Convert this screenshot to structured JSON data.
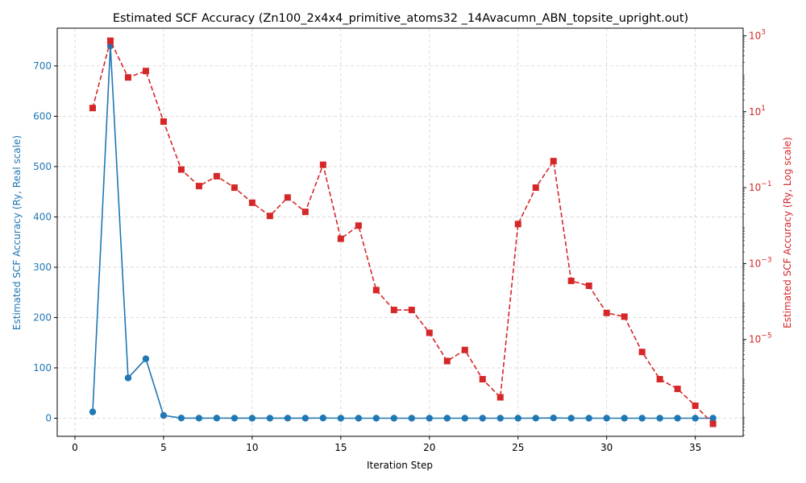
{
  "chart_data": {
    "type": "line",
    "title": "Estimated SCF Accuracy (Zn100_2x4x4_primitive_atoms32 _14Avacumn_ABN_topsite_upright.out)",
    "xlabel": "Iteration Step",
    "ylabel_left": "Estimated SCF Accuracy (Ry, Real scale)",
    "ylabel_right": "Estimated SCF Accuracy (Ry, Log scale)",
    "xlim": [
      -1,
      37.7
    ],
    "ylim_left": [
      -36,
      775
    ],
    "ylim_right_log10": [
      -7.55,
      3.2
    ],
    "x_ticks": [
      0,
      5,
      10,
      15,
      20,
      25,
      30,
      35
    ],
    "y_ticks_left": [
      0,
      100,
      200,
      300,
      400,
      500,
      600,
      700
    ],
    "y_ticks_right": [
      {
        "exp": 3,
        "base": "10",
        "sup": "3"
      },
      {
        "exp": 1,
        "base": "10",
        "sup": "1"
      },
      {
        "exp": -1,
        "base": "10",
        "sup": "−1"
      },
      {
        "exp": -3,
        "base": "10",
        "sup": "−3"
      },
      {
        "exp": -5,
        "base": "10",
        "sup": "−5"
      }
    ],
    "grid": true,
    "x": [
      1,
      2,
      3,
      4,
      5,
      6,
      7,
      8,
      9,
      10,
      11,
      12,
      13,
      14,
      15,
      16,
      17,
      18,
      19,
      20,
      21,
      22,
      23,
      24,
      25,
      26,
      27,
      28,
      29,
      30,
      31,
      32,
      33,
      34,
      35,
      36
    ],
    "series": [
      {
        "axis": "left",
        "scale": "linear",
        "color": "#1f77b4",
        "marker": "circle",
        "linestyle": "solid",
        "values": [
          12.5,
          740,
          80,
          118,
          5.5,
          0.3,
          0.11,
          0.2,
          0.1,
          0.04,
          0.018,
          0.055,
          0.023,
          0.4,
          0.0045,
          0.01,
          0.0002,
          6e-05,
          6e-05,
          1.5e-05,
          2.7e-06,
          5.3e-06,
          9e-07,
          3e-07,
          0.011,
          0.1,
          0.5,
          0.00035,
          0.00026,
          5e-05,
          4e-05,
          4.7e-06,
          9e-07,
          5e-07,
          1.8e-07,
          6e-08
        ]
      },
      {
        "axis": "right",
        "scale": "log",
        "color": "#d62728",
        "marker": "square",
        "linestyle": "dashed",
        "values": [
          12.5,
          740,
          80,
          118,
          5.5,
          0.3,
          0.11,
          0.2,
          0.1,
          0.04,
          0.018,
          0.055,
          0.023,
          0.4,
          0.0045,
          0.01,
          0.0002,
          6e-05,
          6e-05,
          1.5e-05,
          2.7e-06,
          5.3e-06,
          9e-07,
          3e-07,
          0.011,
          0.1,
          0.5,
          0.00035,
          0.00026,
          5e-05,
          4e-05,
          4.7e-06,
          9e-07,
          5e-07,
          1.8e-07,
          6e-08
        ]
      }
    ]
  }
}
